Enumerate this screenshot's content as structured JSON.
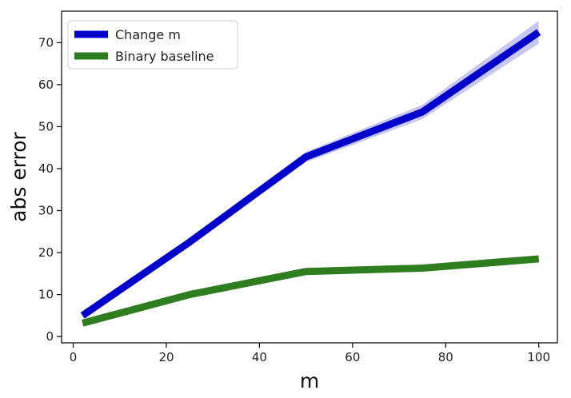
{
  "chart_data": {
    "type": "line",
    "title": "",
    "xlabel": "m",
    "ylabel": "abs error",
    "xlim": [
      -2.5,
      104
    ],
    "ylim": [
      -1.5,
      77.5
    ],
    "xticks": [
      0,
      20,
      40,
      60,
      80,
      100
    ],
    "yticks": [
      0,
      10,
      20,
      30,
      40,
      50,
      60,
      70
    ],
    "grid": false,
    "legend_position": "upper-left",
    "series": [
      {
        "name": "Change m",
        "color": "#0000cc",
        "band_color": "#9999e6",
        "x": [
          2,
          25,
          50,
          75,
          100
        ],
        "y": [
          5,
          22.5,
          42.8,
          53.5,
          72.5
        ],
        "y_lower": [
          4.5,
          21.8,
          41.5,
          51.8,
          69.8
        ],
        "y_upper": [
          5.5,
          23.2,
          44.0,
          55.2,
          75.2
        ]
      },
      {
        "name": "Binary baseline",
        "color": "#2e7d1f",
        "x": [
          2,
          25,
          50,
          75,
          100
        ],
        "y": [
          3.2,
          10.0,
          15.5,
          16.3,
          18.5
        ]
      }
    ]
  }
}
